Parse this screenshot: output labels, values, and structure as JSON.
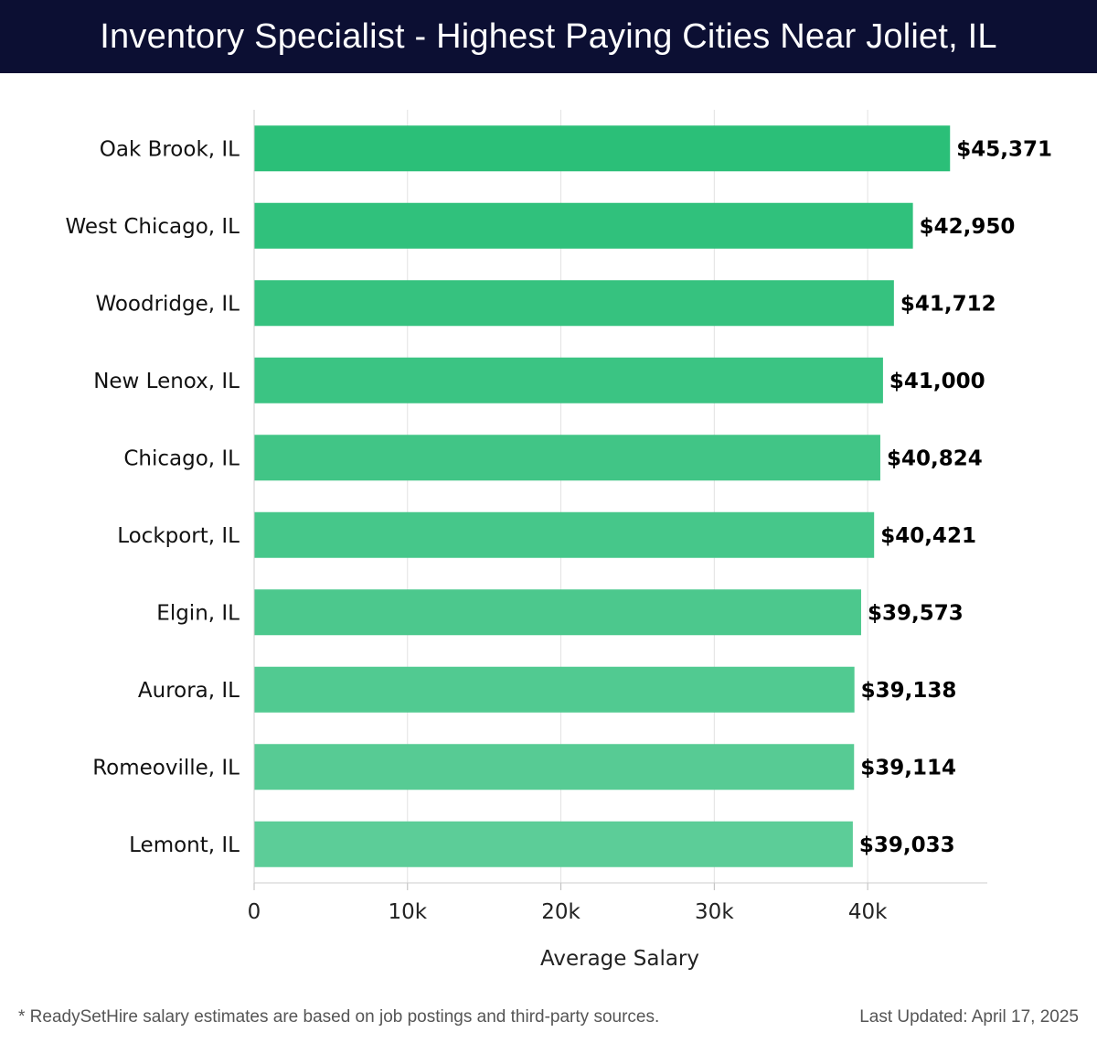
{
  "header": {
    "title": "Inventory Specialist - Highest Paying Cities Near Joliet, IL"
  },
  "chart_data": {
    "type": "bar",
    "orientation": "horizontal",
    "categories": [
      "Oak Brook, IL",
      "West Chicago, IL",
      "Woodridge, IL",
      "New Lenox, IL",
      "Chicago, IL",
      "Lockport, IL",
      "Elgin, IL",
      "Aurora, IL",
      "Romeoville, IL",
      "Lemont, IL"
    ],
    "values": [
      45371,
      42950,
      41712,
      41000,
      40824,
      40421,
      39573,
      39138,
      39114,
      39033
    ],
    "value_labels": [
      "$45,371",
      "$42,950",
      "$41,712",
      "$41,000",
      "$40,824",
      "$40,421",
      "$39,573",
      "$39,138",
      "$39,114",
      "$39,033"
    ],
    "xlabel": "Average Salary",
    "ylabel": "",
    "xticks": [
      0,
      10000,
      20000,
      30000,
      40000
    ],
    "xtick_labels": [
      "0",
      "10k",
      "20k",
      "30k",
      "40k"
    ],
    "xlim": [
      0,
      47800
    ],
    "grid": true,
    "bar_color_top": "#2bbf78",
    "bar_color_bottom": "#5ccd98",
    "header_color": "#0c0f33"
  },
  "footer": {
    "note": "* ReadySetHire salary estimates are based on job postings and third-party sources.",
    "updated": "Last Updated: April 17, 2025"
  }
}
